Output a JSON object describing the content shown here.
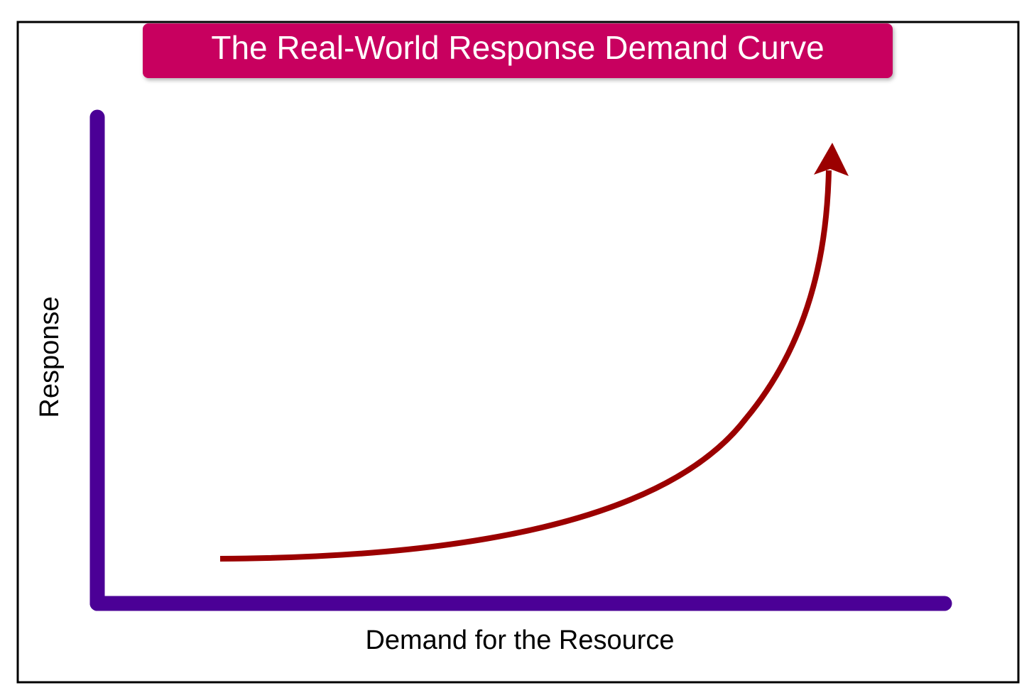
{
  "title": "The Real-World Response Demand Curve",
  "y_axis_label": "Response",
  "x_axis_label": "Demand for the Resource"
}
